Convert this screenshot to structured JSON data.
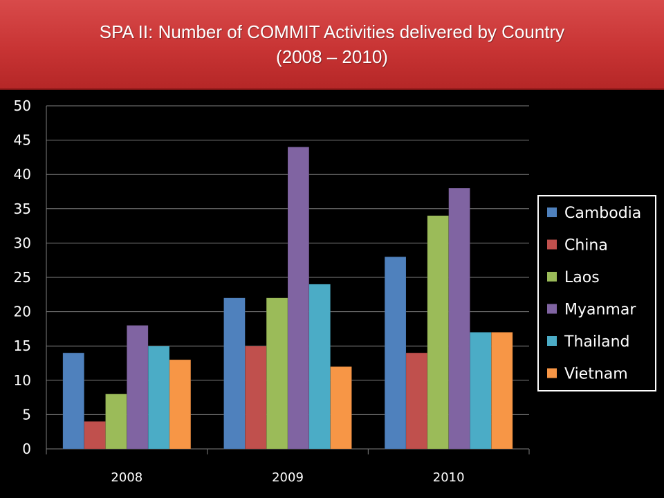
{
  "title": {
    "line1": "SPA II: Number of COMMIT Activities delivered by Country",
    "line2": "(2008 – 2010)"
  },
  "colors": {
    "background": "#000000",
    "banner": "#c83434",
    "text": "#ffffff",
    "gridline": "#7f7f7f",
    "legend_border": "#ffffff"
  },
  "chart_data": {
    "type": "bar",
    "title": "SPA II: Number of COMMIT Activities delivered by Country (2008 – 2010)",
    "xlabel": "",
    "ylabel": "",
    "categories": [
      "2008",
      "2009",
      "2010"
    ],
    "ylim": [
      0,
      50
    ],
    "yticks": [
      0,
      5,
      10,
      15,
      20,
      25,
      30,
      35,
      40,
      45,
      50
    ],
    "grid": true,
    "legend_position": "right",
    "series": [
      {
        "name": "Cambodia",
        "color": "#4f81bd",
        "values": [
          14,
          22,
          28
        ]
      },
      {
        "name": "China",
        "color": "#c0504d",
        "values": [
          4,
          15,
          14
        ]
      },
      {
        "name": "Laos",
        "color": "#9bbb59",
        "values": [
          8,
          22,
          34
        ]
      },
      {
        "name": "Myanmar",
        "color": "#8064a2",
        "values": [
          18,
          44,
          38
        ]
      },
      {
        "name": "Thailand",
        "color": "#4bacc6",
        "values": [
          15,
          24,
          17
        ]
      },
      {
        "name": "Vietnam",
        "color": "#f79646",
        "values": [
          13,
          12,
          17
        ]
      }
    ]
  }
}
